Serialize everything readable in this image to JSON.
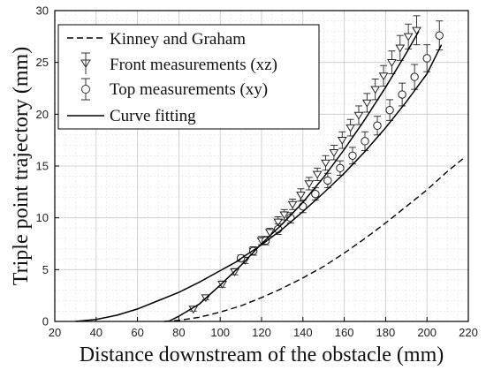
{
  "chart_data": {
    "type": "line",
    "title": "",
    "xlabel": "Distance downstream of the obstacle (mm)",
    "ylabel": "Triple point trajectory (mm)",
    "xlim": [
      20,
      220
    ],
    "ylim": [
      0,
      30
    ],
    "xticks": [
      20,
      40,
      60,
      80,
      100,
      120,
      140,
      160,
      180,
      200,
      220
    ],
    "yticks": [
      0,
      5,
      10,
      15,
      20,
      25,
      30
    ],
    "grid": true,
    "legend_position": "top-left",
    "series": [
      {
        "name": "Kinney and Graham",
        "style": "dashed-line",
        "color": "#000000",
        "x": [
          73,
          80,
          90,
          100,
          110,
          120,
          130,
          140,
          150,
          160,
          170,
          180,
          190,
          200,
          210,
          218
        ],
        "y": [
          0.0,
          0.1,
          0.4,
          0.9,
          1.5,
          2.3,
          3.2,
          4.2,
          5.3,
          6.6,
          8.0,
          9.5,
          11.1,
          12.7,
          14.5,
          15.8
        ]
      },
      {
        "name": "Front measurements (xz)",
        "style": "markers-errorbars",
        "marker": "triangle-down",
        "color": "#222222",
        "x": [
          87,
          93,
          101,
          107,
          112,
          116,
          120,
          124,
          128,
          131,
          135,
          139,
          143,
          147,
          151,
          155,
          159,
          163,
          167,
          171,
          175,
          179,
          183,
          187,
          191,
          195
        ],
        "y": [
          1.2,
          2.3,
          3.6,
          4.8,
          5.9,
          6.8,
          7.8,
          8.6,
          9.6,
          10.3,
          11.3,
          12.2,
          13.3,
          14.2,
          15.3,
          16.3,
          17.5,
          18.7,
          19.9,
          21.1,
          22.4,
          23.7,
          25.0,
          26.4,
          27.5,
          28.1
        ],
        "error": [
          0.2,
          0.2,
          0.3,
          0.3,
          0.3,
          0.4,
          0.4,
          0.4,
          0.5,
          0.5,
          0.5,
          0.6,
          0.6,
          0.6,
          0.7,
          0.7,
          0.8,
          0.8,
          0.9,
          0.9,
          1.0,
          1.0,
          1.1,
          1.2,
          1.2,
          1.4
        ]
      },
      {
        "name": "Top measurements (xy)",
        "style": "markers-errorbars",
        "marker": "circle",
        "color": "#222222",
        "x": [
          110,
          116,
          122,
          128,
          134,
          140,
          146,
          152,
          158,
          164,
          170,
          176,
          182,
          188,
          194,
          200,
          206
        ],
        "y": [
          6.1,
          6.8,
          7.8,
          8.9,
          10.0,
          11.1,
          12.3,
          13.6,
          14.8,
          16.0,
          17.4,
          18.9,
          20.4,
          21.9,
          23.6,
          25.4,
          27.6
        ],
        "error": [
          0.3,
          0.4,
          0.4,
          0.5,
          0.5,
          0.6,
          0.6,
          0.7,
          0.7,
          0.8,
          0.9,
          0.9,
          1.0,
          1.1,
          1.2,
          1.3,
          1.4
        ]
      },
      {
        "name": "Curve fitting",
        "style": "solid-line",
        "color": "#000000",
        "segments": [
          {
            "x": [
              30,
              40,
              50,
              60,
              70,
              80,
              90,
              100,
              110
            ],
            "y": [
              0.0,
              0.2,
              0.6,
              1.2,
              2.0,
              2.8,
              3.8,
              4.9,
              6.0
            ]
          },
          {
            "x": [
              75,
              80,
              90,
              100,
              110,
              120,
              130,
              140,
              150,
              160,
              170,
              180,
              190,
              196
            ],
            "y": [
              0.0,
              0.5,
              1.7,
              3.5,
              5.4,
              7.5,
              9.4,
              11.5,
              13.9,
              16.6,
              19.5,
              22.6,
              25.9,
              28.0
            ]
          },
          {
            "x": [
              108,
              120,
              130,
              140,
              150,
              160,
              170,
              180,
              190,
              200,
              207
            ],
            "y": [
              5.8,
              7.4,
              8.9,
              10.6,
              12.4,
              14.3,
              16.4,
              18.7,
              21.2,
              23.9,
              26.7
            ]
          }
        ]
      }
    ]
  }
}
